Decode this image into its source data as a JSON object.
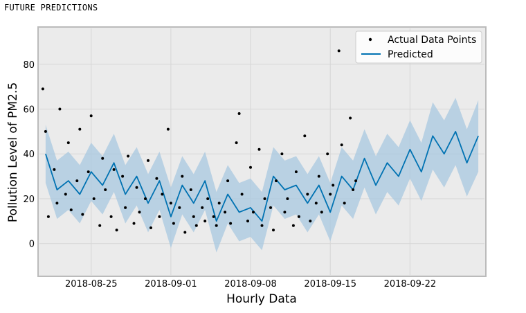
{
  "page": {
    "title": "FUTURE PREDICTIONS"
  },
  "chart_data": {
    "type": "line",
    "title": "",
    "xlabel": "Hourly Data",
    "ylabel": "Pollution Level of PM2.5",
    "x_range": [
      "2018-08-20T11:00",
      "2018-09-28T13:00"
    ],
    "ylim": [
      -14,
      96
    ],
    "x_ticks": [
      "2018-08-25",
      "2018-09-01",
      "2018-09-08",
      "2018-09-15",
      "2018-09-22"
    ],
    "y_ticks": [
      0,
      20,
      40,
      60,
      80
    ],
    "grid": true,
    "legend": {
      "position": "top-right",
      "entries": [
        "Actual Data Points",
        "Predicted"
      ]
    },
    "colors": {
      "actual": "#000000",
      "predicted": "#0072B2",
      "band": "#A8C8E0",
      "plot_bg": "#EBEBEB",
      "frame": "#BBBBBB"
    },
    "series": [
      {
        "name": "Predicted",
        "kind": "line",
        "x": [
          "2018-08-21",
          "2018-08-22",
          "2018-08-23",
          "2018-08-24",
          "2018-08-25",
          "2018-08-26",
          "2018-08-27",
          "2018-08-28",
          "2018-08-29",
          "2018-08-30",
          "2018-08-31",
          "2018-09-01",
          "2018-09-02",
          "2018-09-03",
          "2018-09-04",
          "2018-09-05",
          "2018-09-06",
          "2018-09-07",
          "2018-09-08",
          "2018-09-09",
          "2018-09-10",
          "2018-09-11",
          "2018-09-12",
          "2018-09-13",
          "2018-09-14",
          "2018-09-15",
          "2018-09-16",
          "2018-09-17",
          "2018-09-18",
          "2018-09-19",
          "2018-09-20",
          "2018-09-21",
          "2018-09-22",
          "2018-09-23",
          "2018-09-24",
          "2018-09-25",
          "2018-09-26",
          "2018-09-27",
          "2018-09-28"
        ],
        "y": [
          40,
          24,
          28,
          22,
          32,
          26,
          36,
          22,
          30,
          18,
          28,
          12,
          26,
          18,
          28,
          10,
          22,
          14,
          16,
          10,
          30,
          24,
          26,
          18,
          26,
          14,
          30,
          24,
          38,
          26,
          36,
          30,
          42,
          32,
          48,
          40,
          50,
          36,
          48
        ],
        "upper": [
          53,
          37,
          41,
          35,
          45,
          39,
          49,
          35,
          43,
          31,
          41,
          25,
          39,
          31,
          41,
          23,
          35,
          27,
          29,
          23,
          43,
          37,
          39,
          31,
          39,
          27,
          43,
          37,
          51,
          39,
          49,
          43,
          55,
          45,
          63,
          55,
          65,
          51,
          64
        ],
        "lower": [
          27,
          11,
          15,
          9,
          19,
          13,
          23,
          9,
          17,
          5,
          15,
          -2,
          13,
          5,
          15,
          -4,
          9,
          1,
          3,
          -3,
          17,
          11,
          13,
          5,
          13,
          1,
          17,
          11,
          25,
          13,
          23,
          17,
          29,
          19,
          33,
          25,
          35,
          21,
          32
        ]
      },
      {
        "name": "Actual Data Points",
        "kind": "scatter",
        "x": [
          "2018-08-21",
          "2018-08-21",
          "2018-08-21",
          "2018-08-22",
          "2018-08-22",
          "2018-08-22",
          "2018-08-23",
          "2018-08-23",
          "2018-08-23",
          "2018-08-24",
          "2018-08-24",
          "2018-08-24",
          "2018-08-25",
          "2018-08-25",
          "2018-08-25",
          "2018-08-26",
          "2018-08-26",
          "2018-08-26",
          "2018-08-27",
          "2018-08-27",
          "2018-08-27",
          "2018-08-28",
          "2018-08-28",
          "2018-08-28",
          "2018-08-29",
          "2018-08-29",
          "2018-08-29",
          "2018-08-30",
          "2018-08-30",
          "2018-08-30",
          "2018-08-31",
          "2018-08-31",
          "2018-08-31",
          "2018-09-01",
          "2018-09-01",
          "2018-09-01",
          "2018-09-02",
          "2018-09-02",
          "2018-09-02",
          "2018-09-03",
          "2018-09-03",
          "2018-09-03",
          "2018-09-04",
          "2018-09-04",
          "2018-09-04",
          "2018-09-05",
          "2018-09-05",
          "2018-09-05",
          "2018-09-06",
          "2018-09-06",
          "2018-09-06",
          "2018-09-07",
          "2018-09-07",
          "2018-09-07",
          "2018-09-08",
          "2018-09-08",
          "2018-09-08",
          "2018-09-09",
          "2018-09-09",
          "2018-09-09",
          "2018-09-10",
          "2018-09-10",
          "2018-09-10",
          "2018-09-11",
          "2018-09-11",
          "2018-09-11",
          "2018-09-12",
          "2018-09-12",
          "2018-09-12",
          "2018-09-13",
          "2018-09-13",
          "2018-09-13",
          "2018-09-14",
          "2018-09-14",
          "2018-09-14",
          "2018-09-15",
          "2018-09-15",
          "2018-09-15",
          "2018-09-16",
          "2018-09-16",
          "2018-09-16",
          "2018-09-17",
          "2018-09-17",
          "2018-09-17"
        ],
        "y": [
          69,
          50,
          12,
          33,
          18,
          60,
          22,
          45,
          15,
          28,
          51,
          13,
          32,
          57,
          20,
          8,
          38,
          24,
          12,
          33,
          6,
          30,
          16,
          39,
          9,
          25,
          14,
          20,
          37,
          7,
          29,
          12,
          22,
          51,
          18,
          9,
          16,
          30,
          5,
          24,
          12,
          8,
          16,
          10,
          20,
          12,
          8,
          18,
          14,
          28,
          9,
          45,
          58,
          22,
          10,
          34,
          14,
          42,
          8,
          20,
          16,
          6,
          28,
          40,
          14,
          20,
          8,
          32,
          12,
          48,
          22,
          10,
          18,
          30,
          14,
          40,
          22,
          26,
          86,
          44,
          18,
          56,
          24,
          28
        ]
      }
    ]
  }
}
